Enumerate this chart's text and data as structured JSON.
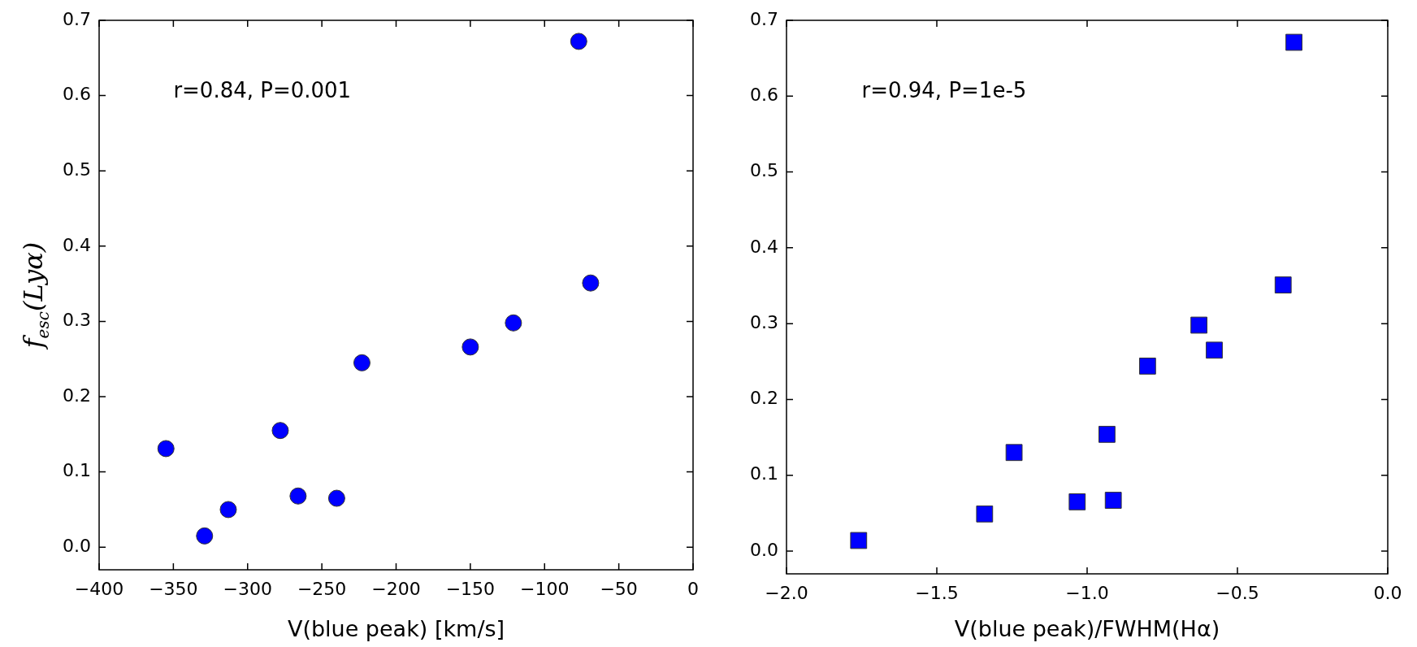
{
  "chart_data": [
    {
      "type": "scatter",
      "xlabel": "V(blue peak) [km/s]",
      "ylabel": "f$_{esc}$(Lyα)",
      "annotations": [
        "r=0.84, P=0.001"
      ],
      "marker": "circle",
      "x": [
        -77,
        -69,
        -121,
        -150,
        -223,
        -278,
        -355,
        -266,
        -240,
        -313,
        -329
      ],
      "series": [
        {
          "color": "#0000ff",
          "values": [
            0.672,
            0.351,
            0.298,
            0.266,
            0.245,
            0.155,
            0.131,
            0.068,
            0.065,
            0.05,
            0.015
          ]
        }
      ],
      "xlim": [
        -400,
        0
      ],
      "ylim": [
        -0.03,
        0.7
      ],
      "xticks": [
        {
          "value": -400,
          "label": "−400"
        },
        {
          "value": -350,
          "label": "−350"
        },
        {
          "value": -300,
          "label": "−300"
        },
        {
          "value": -250,
          "label": "−250"
        },
        {
          "value": -200,
          "label": "−200"
        },
        {
          "value": -150,
          "label": "−150"
        },
        {
          "value": -100,
          "label": "−100"
        },
        {
          "value": -50,
          "label": "−50"
        },
        0
      ],
      "yticks": [
        {
          "value": 0,
          "label": "0.0"
        },
        0.1,
        0.2,
        0.3,
        0.4,
        0.5,
        0.6,
        0.7
      ]
    },
    {
      "type": "scatter",
      "xlabel": "V(blue peak)/FWHM(Hα)",
      "annotations": [
        "r=0.94, P=1e-5"
      ],
      "marker": "square",
      "x": [
        -0.312,
        -0.348,
        -0.628,
        -0.577,
        -0.799,
        -0.934,
        -1.243,
        -0.913,
        -1.033,
        -1.341,
        -1.76
      ],
      "series": [
        {
          "color": "#0000ff",
          "values": [
            0.671,
            0.351,
            0.298,
            0.265,
            0.244,
            0.154,
            0.13,
            0.067,
            0.065,
            0.049,
            0.014
          ]
        }
      ],
      "xlim": [
        -2,
        0
      ],
      "ylim": [
        -0.03,
        0.7
      ],
      "xticks": [
        {
          "value": -2,
          "label": "−2.0"
        },
        {
          "value": -1.5,
          "label": "−1.5"
        },
        {
          "value": -1,
          "label": "−1.0"
        },
        {
          "value": -0.5,
          "label": "−0.5"
        },
        {
          "value": 0,
          "label": "0.0"
        }
      ],
      "yticks": [
        {
          "value": 0,
          "label": "0.0"
        },
        0.1,
        0.2,
        0.3,
        0.4,
        0.5,
        0.6,
        0.7
      ]
    }
  ]
}
